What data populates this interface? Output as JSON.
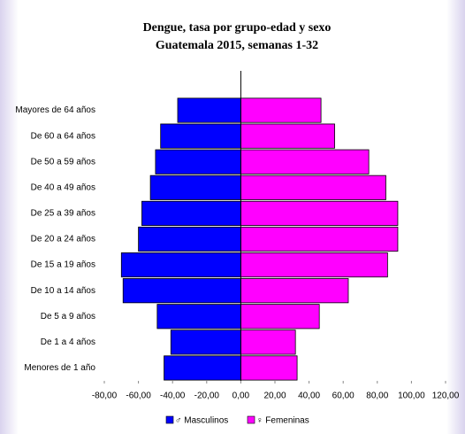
{
  "chart_data": {
    "type": "bar",
    "orientation": "horizontal",
    "title": "Dengue, tasa por grupo-edad y sexo",
    "subtitle": "Guatemala 2015, semanas 1-32",
    "categories": [
      "Mayores de 64 años",
      "De 60 a 64 años",
      "De 50 a 59 años",
      "De 40 a 49 años",
      "De 25 a 39 años",
      "De 20 a 24 años",
      "De 15 a 19 años",
      "De 10 a 14 años",
      "De 5 a 9 años",
      "De 1 a 4 años",
      "Menores de 1 año"
    ],
    "series": [
      {
        "name": "♂ Masculinos",
        "color": "#0000ff",
        "values": [
          -37,
          -47,
          -50,
          -53,
          -58,
          -60,
          -70,
          -69,
          -49,
          -41,
          -45
        ]
      },
      {
        "name": "♀ Femeninas",
        "color": "#ff00ff",
        "values": [
          47,
          55,
          75,
          85,
          92,
          92,
          86,
          63,
          46,
          32,
          33
        ]
      }
    ],
    "xlim": [
      -80,
      120
    ],
    "xticks": [
      {
        "value": -80,
        "label": "-80,00"
      },
      {
        "value": -60,
        "label": "-60,00"
      },
      {
        "value": -40,
        "label": "-40,00"
      },
      {
        "value": -20,
        "label": "-20,00"
      },
      {
        "value": 0,
        "label": "0,00"
      },
      {
        "value": 20,
        "label": "20,00"
      },
      {
        "value": 40,
        "label": "40,00"
      },
      {
        "value": 60,
        "label": "60,00"
      },
      {
        "value": 80,
        "label": "80,00"
      },
      {
        "value": 100,
        "label": "100,00"
      },
      {
        "value": 120,
        "label": "120,00"
      }
    ],
    "legend": "bottom"
  }
}
